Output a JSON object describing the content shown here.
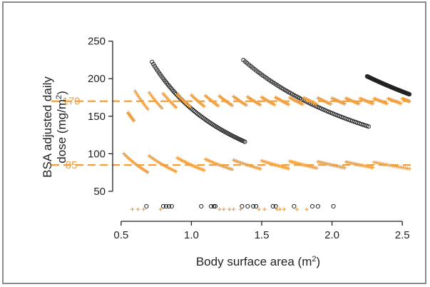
{
  "chart_data": {
    "type": "scatter",
    "xlabel": "Body surface area (m",
    "xlabel_sup": "2",
    "xlabel_end": ")",
    "ylabel_line1": "BSA adjusted daily",
    "ylabel_line2": "dose (mg/m",
    "ylabel_sup": "2",
    "ylabel_end": ")",
    "xlim": [
      0.44,
      2.56
    ],
    "ylim": [
      10,
      262
    ],
    "x_ticks": [
      {
        "value": 0.5,
        "label": "0.5"
      },
      {
        "value": 1.0,
        "label": "1.0"
      },
      {
        "value": 1.5,
        "label": "1.5"
      },
      {
        "value": 2.0,
        "label": "2.0"
      },
      {
        "value": 2.5,
        "label": "2.5"
      }
    ],
    "y_ticks": [
      {
        "value": 50,
        "label": "50"
      },
      {
        "value": 100,
        "label": "100"
      },
      {
        "value": 150,
        "label": "150"
      },
      {
        "value": 200,
        "label": "200"
      },
      {
        "value": 250,
        "label": "250"
      }
    ],
    "reference_lines": [
      {
        "value": 170,
        "label": "170",
        "color": "#f0a040"
      },
      {
        "value": 85,
        "label": "85",
        "color": "#f0a040"
      }
    ],
    "grid": false,
    "colors": {
      "orange": "#f0a040",
      "black": "#222222",
      "axis": "#222222"
    },
    "series": [
      {
        "marker": "circle",
        "color": "#222222",
        "curves": [
          {
            "x_start": 0.72,
            "x_end": 1.38,
            "k": 160
          },
          {
            "x_start": 1.37,
            "x_end": 2.26,
            "k": 308
          },
          {
            "x_start": 2.25,
            "x_end": 2.55,
            "k": 457
          }
        ],
        "points_per_curve": 70,
        "bottom_points": {
          "y": 30,
          "x": [
            0.68,
            0.8,
            0.82,
            0.84,
            0.86,
            1.07,
            1.14,
            1.16,
            1.17,
            1.36,
            1.4,
            1.44,
            1.46,
            1.58,
            1.6,
            1.73,
            1.86,
            1.9,
            2.01
          ]
        }
      },
      {
        "marker": "plus",
        "color": "#f0a040",
        "curves_high": [
          {
            "x_start": 0.55,
            "x_end": 0.59,
            "k": 85
          },
          {
            "x_start": 0.6,
            "x_end": 0.69,
            "k": 110
          },
          {
            "x_start": 0.7,
            "x_end": 0.79,
            "k": 127
          },
          {
            "x_start": 0.8,
            "x_end": 0.89,
            "k": 144
          },
          {
            "x_start": 0.9,
            "x_end": 0.99,
            "k": 161
          },
          {
            "x_start": 1.0,
            "x_end": 1.09,
            "k": 178
          },
          {
            "x_start": 1.1,
            "x_end": 1.19,
            "k": 195
          },
          {
            "x_start": 1.2,
            "x_end": 1.29,
            "k": 212
          },
          {
            "x_start": 1.3,
            "x_end": 1.39,
            "k": 229
          },
          {
            "x_start": 1.4,
            "x_end": 1.49,
            "k": 246
          },
          {
            "x_start": 1.5,
            "x_end": 1.59,
            "k": 263
          },
          {
            "x_start": 1.6,
            "x_end": 1.69,
            "k": 280
          },
          {
            "x_start": 1.7,
            "x_end": 1.79,
            "k": 297
          },
          {
            "x_start": 1.8,
            "x_end": 1.89,
            "k": 314
          },
          {
            "x_start": 1.9,
            "x_end": 1.99,
            "k": 331
          },
          {
            "x_start": 2.0,
            "x_end": 2.09,
            "k": 348
          },
          {
            "x_start": 2.1,
            "x_end": 2.19,
            "k": 365
          },
          {
            "x_start": 2.2,
            "x_end": 2.29,
            "k": 382
          },
          {
            "x_start": 2.3,
            "x_end": 2.39,
            "k": 399
          },
          {
            "x_start": 2.4,
            "x_end": 2.49,
            "k": 416
          },
          {
            "x_start": 2.5,
            "x_end": 2.55,
            "k": 433
          }
        ],
        "curves_low": [
          {
            "x_start": 0.52,
            "x_end": 0.69,
            "k": 52
          },
          {
            "x_start": 0.7,
            "x_end": 0.89,
            "k": 68
          },
          {
            "x_start": 0.9,
            "x_end": 1.09,
            "k": 85
          },
          {
            "x_start": 1.1,
            "x_end": 1.29,
            "k": 102
          },
          {
            "x_start": 1.3,
            "x_end": 1.49,
            "k": 119
          },
          {
            "x_start": 1.5,
            "x_end": 1.69,
            "k": 136
          },
          {
            "x_start": 1.7,
            "x_end": 1.89,
            "k": 153
          },
          {
            "x_start": 1.9,
            "x_end": 2.09,
            "k": 170
          },
          {
            "x_start": 2.1,
            "x_end": 2.29,
            "k": 187
          },
          {
            "x_start": 2.3,
            "x_end": 2.55,
            "k": 204
          }
        ],
        "points_per_curve_high": 12,
        "points_per_curve_low": 20,
        "bottom_points": {
          "y": 26,
          "x": [
            0.58,
            0.62,
            0.66,
            0.78,
            1.2,
            1.23,
            1.27,
            1.3,
            1.35,
            1.48,
            1.52,
            1.61,
            1.63,
            1.66,
            1.75,
            1.82
          ]
        }
      }
    ]
  }
}
